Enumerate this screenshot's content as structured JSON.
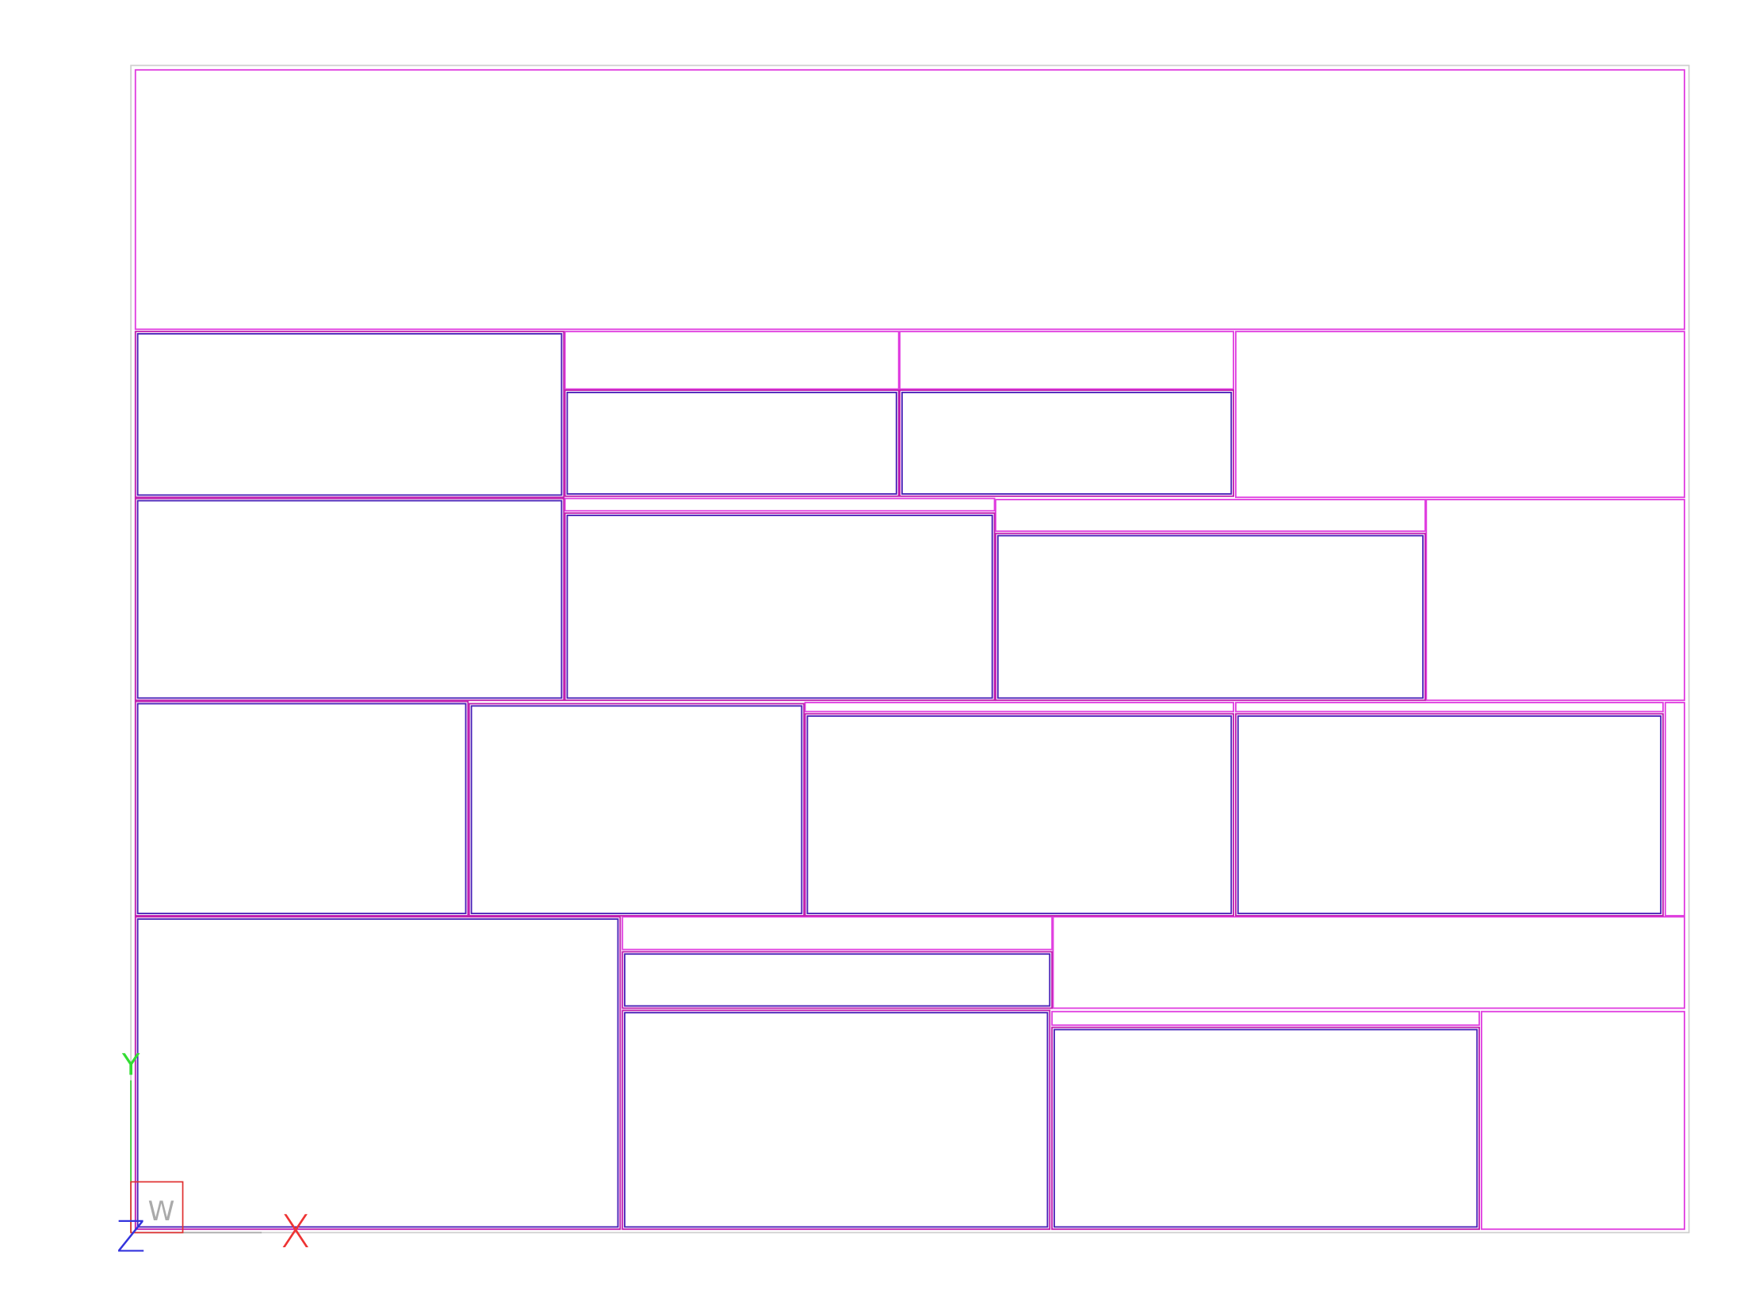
{
  "ucs_icon": {
    "y_axis": "Y",
    "x_axis": "X",
    "z_axis": "Z",
    "view": "W"
  }
}
